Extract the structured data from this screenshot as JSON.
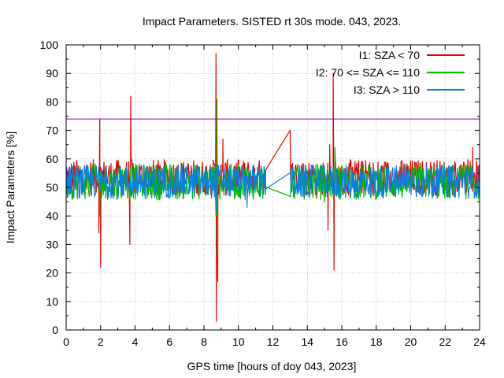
{
  "chart_data": {
    "type": "line",
    "title": "Impact Parameters. SISTED rt 30s mode. 043, 2023.",
    "xlabel": "GPS time [hours of doy 043, 2023]",
    "ylabel": "Impact Parameters [%]",
    "xlim": [
      0,
      24
    ],
    "ylim": [
      0,
      100
    ],
    "xticks": [
      "0",
      "2",
      "4",
      "6",
      "8",
      "10",
      "12",
      "14",
      "16",
      "18",
      "20",
      "22",
      "24"
    ],
    "yticks": [
      "0",
      "10",
      "20",
      "30",
      "40",
      "50",
      "60",
      "70",
      "80",
      "90",
      "100"
    ],
    "grid": true,
    "legend_position": "top-right",
    "threshold": {
      "value": 74,
      "color": "#9400D3"
    },
    "data_gap_hours": [
      11.6,
      13.0
    ],
    "series": [
      {
        "name": "I1: SZA < 70",
        "color": "#ee0000",
        "mean": 53.5,
        "noise_range": [
          46,
          60
        ],
        "spikes": [
          {
            "x": 1.95,
            "y": 74
          },
          {
            "x": 2.0,
            "y": 22
          },
          {
            "x": 1.9,
            "y": 34
          },
          {
            "x": 3.75,
            "y": 82
          },
          {
            "x": 3.7,
            "y": 30
          },
          {
            "x": 8.7,
            "y": 97
          },
          {
            "x": 8.72,
            "y": 3
          },
          {
            "x": 8.8,
            "y": 17
          },
          {
            "x": 9.1,
            "y": 67
          },
          {
            "x": 13.0,
            "y": 70
          },
          {
            "x": 15.5,
            "y": 90
          },
          {
            "x": 15.55,
            "y": 21
          },
          {
            "x": 15.2,
            "y": 35
          },
          {
            "x": 15.3,
            "y": 65
          },
          {
            "x": 23.6,
            "y": 64
          }
        ]
      },
      {
        "name": "I2: 70 <= SZA <= 110",
        "color": "#00bb00",
        "mean": 52,
        "noise_range": [
          44,
          58
        ],
        "spikes": [
          {
            "x": 8.75,
            "y": 81
          },
          {
            "x": 8.78,
            "y": 26
          },
          {
            "x": 8.7,
            "y": 40
          },
          {
            "x": 1.95,
            "y": 40
          },
          {
            "x": 15.6,
            "y": 64
          }
        ]
      },
      {
        "name": "I3: SZA > 110",
        "color": "#0a7ee6",
        "mean": 52,
        "noise_range": [
          45,
          58
        ],
        "spikes": [
          {
            "x": 8.75,
            "y": 42
          },
          {
            "x": 10.5,
            "y": 43
          },
          {
            "x": 15.7,
            "y": 48
          }
        ]
      }
    ]
  }
}
